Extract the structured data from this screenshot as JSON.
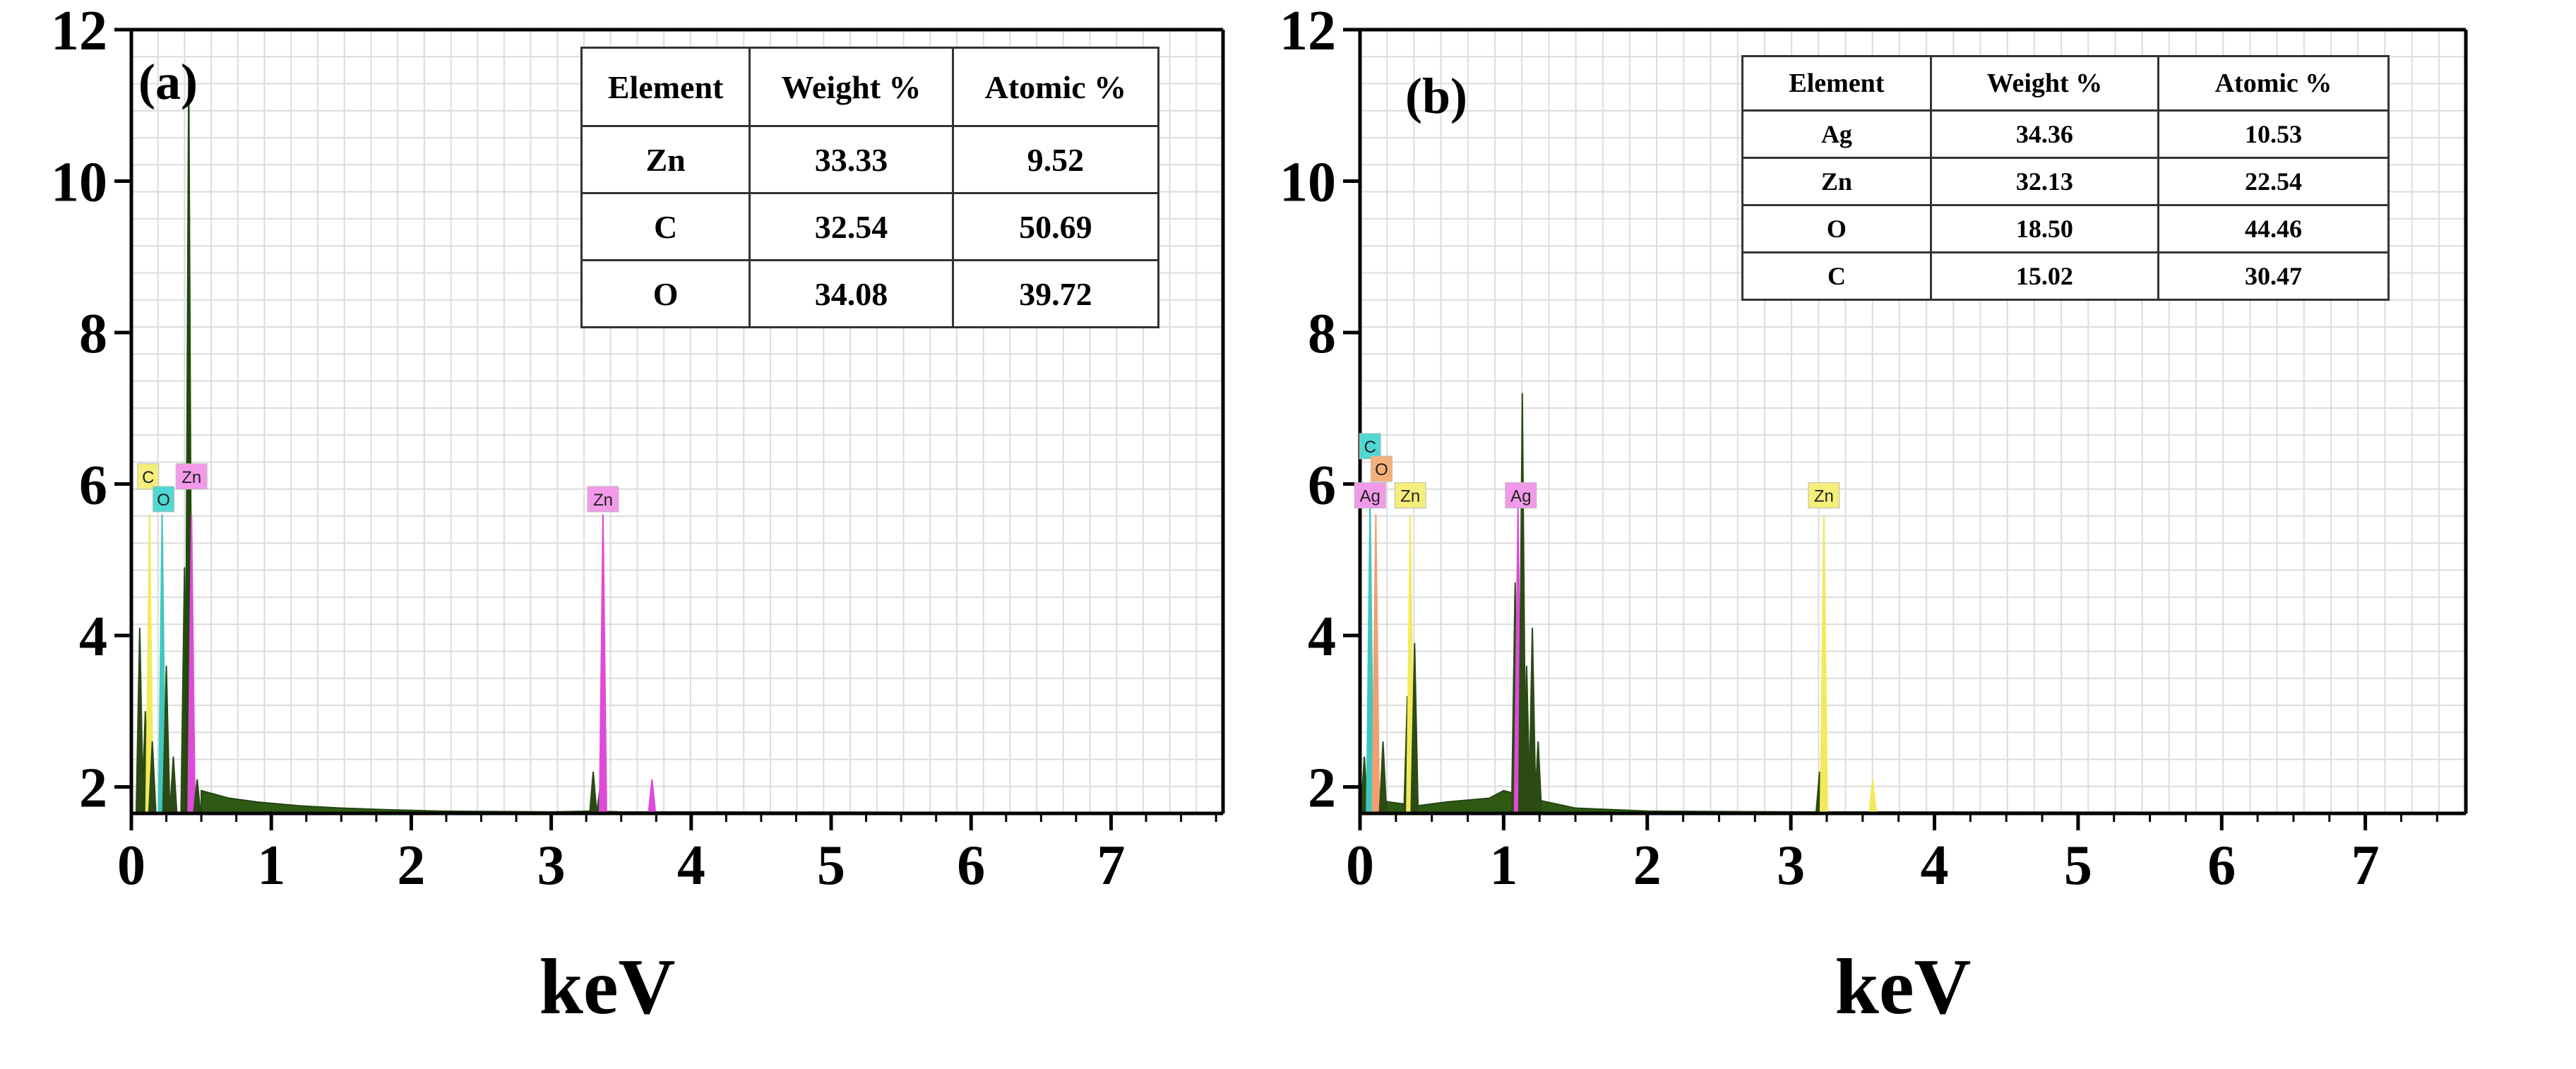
{
  "chart_data": [
    {
      "id": "a",
      "type": "line",
      "panel_label": "(a)",
      "xlabel": "keV",
      "ylabel": "",
      "xlim": [
        0,
        7.8
      ],
      "ylim": [
        1.65,
        12
      ],
      "x_ticks": [
        0,
        1,
        2,
        3,
        4,
        5,
        6,
        7
      ],
      "y_ticks": [
        2,
        4,
        6,
        8,
        10,
        12
      ],
      "grid": true,
      "table": {
        "headers": [
          "Element",
          "Weight %",
          "Atomic %"
        ],
        "rows": [
          [
            "Zn",
            "33.33",
            "9.52"
          ],
          [
            "C",
            "32.54",
            "50.69"
          ],
          [
            "O",
            "34.08",
            "39.72"
          ]
        ]
      },
      "peaks": [
        {
          "x": 0.06,
          "y": 4.1,
          "color": "#2b4a14"
        },
        {
          "x": 0.1,
          "y": 3.0,
          "color": "#2b4a14"
        },
        {
          "x": 0.13,
          "y": 5.6,
          "color": "#f2ea5a"
        },
        {
          "x": 0.15,
          "y": 2.6,
          "color": "#2b4a14"
        },
        {
          "x": 0.22,
          "y": 5.6,
          "color": "#3fc7c2"
        },
        {
          "x": 0.25,
          "y": 3.6,
          "color": "#2b4a14"
        },
        {
          "x": 0.3,
          "y": 2.4,
          "color": "#2b4a14"
        },
        {
          "x": 0.38,
          "y": 4.9,
          "color": "#2b4a14"
        },
        {
          "x": 0.41,
          "y": 11.5,
          "color": "#1e4a0a"
        },
        {
          "x": 0.43,
          "y": 5.6,
          "color": "#e04ad8"
        },
        {
          "x": 0.47,
          "y": 2.1,
          "color": "#2b4a14"
        },
        {
          "x": 3.3,
          "y": 2.2,
          "color": "#2b4a14"
        },
        {
          "x": 3.35,
          "y": 2.0,
          "color": "#2b4a14"
        },
        {
          "x": 3.37,
          "y": 5.6,
          "color": "#e04ad8"
        },
        {
          "x": 3.72,
          "y": 2.1,
          "color": "#e04ad8"
        }
      ],
      "baseline": [
        [
          0.5,
          1.95
        ],
        [
          0.7,
          1.85
        ],
        [
          0.9,
          1.8
        ],
        [
          1.2,
          1.75
        ],
        [
          1.5,
          1.72
        ],
        [
          1.8,
          1.7
        ],
        [
          2.2,
          1.68
        ],
        [
          3.0,
          1.67
        ],
        [
          3.3,
          1.68
        ],
        [
          3.5,
          1.67
        ],
        [
          7.8,
          1.66
        ]
      ],
      "markers": [
        {
          "label": "C",
          "x": 0.12,
          "y": 6.1,
          "bg": "#f5ee7a"
        },
        {
          "label": "Zn",
          "x": 0.43,
          "y": 6.1,
          "bg": "#f29ae9"
        },
        {
          "label": "O",
          "x": 0.23,
          "y": 5.8,
          "bg": "#4fd8d4"
        },
        {
          "label": "Zn",
          "x": 3.37,
          "y": 5.8,
          "bg": "#f29ae9"
        }
      ]
    },
    {
      "id": "b",
      "type": "line",
      "panel_label": "(b)",
      "xlabel": "keV",
      "ylabel": "",
      "xlim": [
        0,
        7.7
      ],
      "ylim": [
        1.65,
        12
      ],
      "x_ticks": [
        0,
        1,
        2,
        3,
        4,
        5,
        6,
        7
      ],
      "y_ticks": [
        2,
        4,
        6,
        8,
        10,
        12
      ],
      "grid": true,
      "table": {
        "headers": [
          "Element",
          "Weight %",
          "Atomic %"
        ],
        "rows": [
          [
            "Ag",
            "34.36",
            "10.53"
          ],
          [
            "Zn",
            "32.13",
            "22.54"
          ],
          [
            "O",
            "18.50",
            "44.46"
          ],
          [
            "C",
            "15.02",
            "30.47"
          ]
        ]
      },
      "peaks": [
        {
          "x": 0.03,
          "y": 2.4,
          "color": "#2b4a14"
        },
        {
          "x": 0.07,
          "y": 5.8,
          "color": "#3fc7c2"
        },
        {
          "x": 0.11,
          "y": 5.6,
          "color": "#f0a070"
        },
        {
          "x": 0.16,
          "y": 2.6,
          "color": "#2b4a14"
        },
        {
          "x": 0.33,
          "y": 3.2,
          "color": "#2b4a14"
        },
        {
          "x": 0.35,
          "y": 5.6,
          "color": "#f2ea5a"
        },
        {
          "x": 0.38,
          "y": 3.9,
          "color": "#2b4a14"
        },
        {
          "x": 1.08,
          "y": 4.7,
          "color": "#2b4a14"
        },
        {
          "x": 1.1,
          "y": 5.7,
          "color": "#e04ad8"
        },
        {
          "x": 1.13,
          "y": 7.2,
          "color": "#2b4a14"
        },
        {
          "x": 1.16,
          "y": 3.6,
          "color": "#2b4a14"
        },
        {
          "x": 1.2,
          "y": 4.1,
          "color": "#2b4a14"
        },
        {
          "x": 1.24,
          "y": 2.6,
          "color": "#2b4a14"
        },
        {
          "x": 3.2,
          "y": 2.2,
          "color": "#2b4a14"
        },
        {
          "x": 3.23,
          "y": 5.6,
          "color": "#f2ea5a"
        },
        {
          "x": 3.57,
          "y": 2.1,
          "color": "#f2ea5a"
        }
      ],
      "baseline": [
        [
          0.0,
          1.9
        ],
        [
          0.2,
          1.8
        ],
        [
          0.4,
          1.75
        ],
        [
          0.6,
          1.8
        ],
        [
          0.9,
          1.85
        ],
        [
          1.0,
          1.95
        ],
        [
          1.3,
          1.8
        ],
        [
          1.5,
          1.72
        ],
        [
          2.0,
          1.68
        ],
        [
          3.0,
          1.67
        ],
        [
          7.7,
          1.66
        ]
      ],
      "markers": [
        {
          "label": "C",
          "x": 0.07,
          "y": 6.5,
          "bg": "#4fd8d4"
        },
        {
          "label": "O",
          "x": 0.15,
          "y": 6.2,
          "bg": "#f5b07a"
        },
        {
          "label": "Ag",
          "x": 0.07,
          "y": 5.85,
          "bg": "#f29ae9"
        },
        {
          "label": "Zn",
          "x": 0.35,
          "y": 5.85,
          "bg": "#f5ee7a"
        },
        {
          "label": "Ag",
          "x": 1.12,
          "y": 5.85,
          "bg": "#f29ae9"
        },
        {
          "label": "Zn",
          "x": 3.23,
          "y": 5.85,
          "bg": "#f5ee7a"
        }
      ]
    }
  ]
}
